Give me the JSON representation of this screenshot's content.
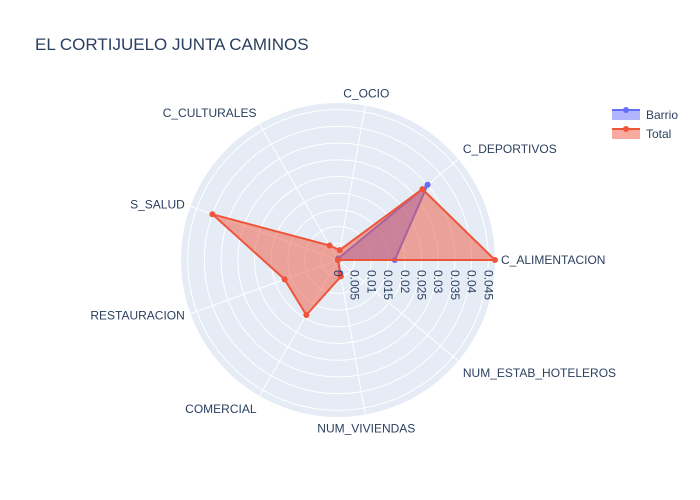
{
  "chart_data": {
    "type": "radar",
    "title": "EL CORTIJUELO JUNTA CAMINOS",
    "categories": [
      "C_ALIMENTACION",
      "C_DEPORTIVOS",
      "C_OCIO",
      "C_CULTURALES",
      "S_SALUD",
      "RESTAURACION",
      "COMERCIAL",
      "NUM_VIVIENDAS",
      "NUM_ESTAB_HOTELEROS"
    ],
    "radial_ticks": [
      "0",
      "0.005",
      "0.01",
      "0.015",
      "0.02",
      "0.025",
      "0.03",
      "0.035",
      "0.04",
      "0.045"
    ],
    "radial_range": [
      0,
      0.047
    ],
    "series": [
      {
        "name": "Barrio",
        "color": "#636efa",
        "values": [
          0.017,
          0.035,
          0.0005,
          0.0,
          0.0,
          0.0,
          0.0,
          0.004,
          0.0
        ]
      },
      {
        "name": "Total",
        "color": "#ef553b",
        "values": [
          0.047,
          0.033,
          0.003,
          0.005,
          0.04,
          0.017,
          0.019,
          0.005,
          0.0
        ]
      }
    ],
    "legend": {
      "position": "top-right"
    },
    "grid": true
  }
}
